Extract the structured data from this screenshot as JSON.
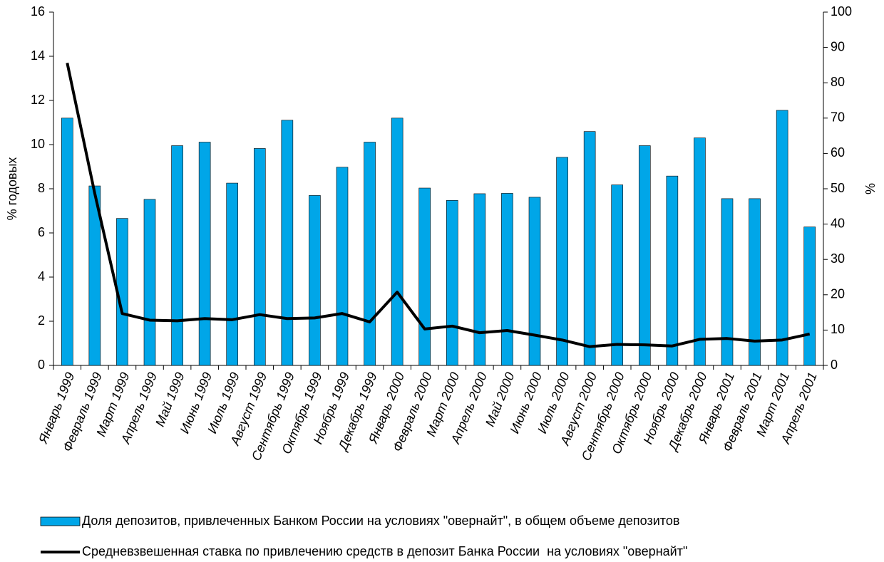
{
  "chart_data": {
    "type": "bar",
    "categories": [
      "Январь 1999",
      "Февраль 1999",
      "Март 1999",
      "Апрель 1999",
      "Май 1999",
      "Июнь 1999",
      "Июль 1999",
      "Август 1999",
      "Сентябрь 1999",
      "Октябрь 1999",
      "Ноябрь 1999",
      "Декабрь 1999",
      "Январь 2000",
      "Февраль 2000",
      "Март 2000",
      "Апрель 2000",
      "Май 2000",
      "Июнь 2000",
      "Июль 2000",
      "Август 2000",
      "Сентябрь 2000",
      "Октябрь 2000",
      "Ноябрь 2000",
      "Декабрь 2000",
      "Январь 2001",
      "Февраль 2001",
      "Март 2001",
      "Апрель 2001"
    ],
    "series": [
      {
        "name": "Доля депозитов, привлеченных Банком России на условиях \"овернайт\", в общем объеме депозитов",
        "type": "bar",
        "axis": "y2",
        "color": "#00a6e8",
        "values": [
          70,
          50.8,
          41.6,
          47,
          62.2,
          63.2,
          51.6,
          61.4,
          69.4,
          48.1,
          56.1,
          63.2,
          70,
          50.2,
          46.7,
          48.6,
          48.7,
          47.6,
          58.9,
          66.2,
          51.1,
          62.2,
          53.6,
          64.4,
          47.2,
          47.2,
          72.2,
          39.2
        ]
      },
      {
        "name": "Средневзвешенная ставка по привлечению средств в депозит Банка России  на условиях \"овернайт\"",
        "type": "line",
        "axis": "y",
        "color": "#000000",
        "values": [
          13.7,
          7.8,
          2.35,
          2.05,
          2.02,
          2.12,
          2.07,
          2.3,
          2.12,
          2.15,
          2.35,
          1.97,
          3.32,
          1.65,
          1.78,
          1.48,
          1.58,
          1.37,
          1.15,
          0.85,
          0.95,
          0.93,
          0.88,
          1.18,
          1.22,
          1.1,
          1.15,
          1.42
        ]
      }
    ],
    "y_label": "% годовых",
    "y2_label": "%",
    "ylim": [
      0,
      16
    ],
    "yticks": [
      0,
      2,
      4,
      6,
      8,
      10,
      12,
      14,
      16
    ],
    "y2lim": [
      0,
      100
    ],
    "y2ticks": [
      0,
      10,
      20,
      30,
      40,
      50,
      60,
      70,
      80,
      90,
      100
    ]
  }
}
